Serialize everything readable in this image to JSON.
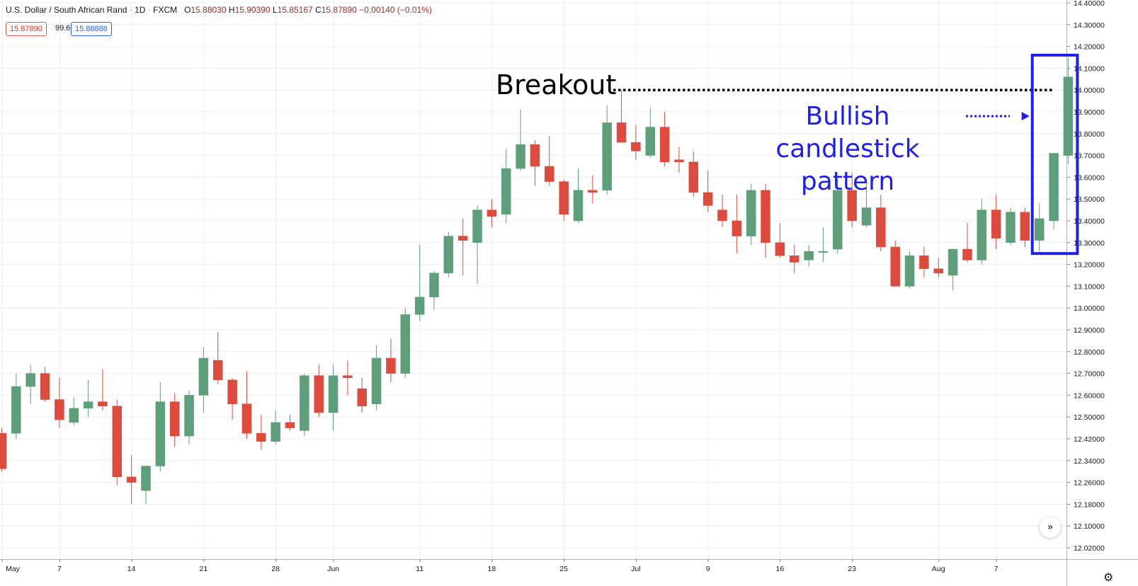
{
  "header": {
    "symbol": "U.S. Dollar / South African Rand",
    "interval": "1D",
    "source": "FXCM",
    "open_label": "O",
    "open": "15.88030",
    "high_label": "H",
    "high": "15.90390",
    "low_label": "L",
    "low": "15.85167",
    "close_label": "C",
    "close": "15.87890",
    "change": "−0.00140 (−0.01%)",
    "bid": "15.87890",
    "spread": "99.6",
    "ask": "15.88886"
  },
  "annotations": {
    "breakout": "Breakout",
    "bullish_line1": "Bullish candlestick",
    "bullish_line2": "pattern"
  },
  "controls": {
    "scroll_icon": "»",
    "settings_icon": "⚙"
  },
  "colors": {
    "up": "#5f9e7a",
    "down": "#db4c3f",
    "box": "#1f1fe6",
    "grid": "#eceef2"
  },
  "chart_data": {
    "type": "candlestick",
    "title": "U.S. Dollar / South African Rand · 1D · FXCM",
    "ylim": [
      12.02,
      14.4
    ],
    "y_ticks": [
      "14.40000",
      "14.30000",
      "14.20000",
      "14.10000",
      "14.00000",
      "13.90000",
      "13.80000",
      "13.70000",
      "13.60000",
      "13.50000",
      "13.40000",
      "13.30000",
      "13.20000",
      "13.10000",
      "13.00000",
      "12.90000",
      "12.80000",
      "12.70000",
      "12.60000",
      "12.50000",
      "12.42000",
      "12.34000",
      "12.26000",
      "12.18000",
      "12.10000",
      "12.02000"
    ],
    "x_ticks": [
      {
        "label": "May",
        "index": 0
      },
      {
        "label": "7",
        "index": 4
      },
      {
        "label": "14",
        "index": 9
      },
      {
        "label": "21",
        "index": 14
      },
      {
        "label": "28",
        "index": 19
      },
      {
        "label": "Jun",
        "index": 23
      },
      {
        "label": "11",
        "index": 29
      },
      {
        "label": "18",
        "index": 34
      },
      {
        "label": "25",
        "index": 39
      },
      {
        "label": "Jul",
        "index": 44
      },
      {
        "label": "9",
        "index": 49
      },
      {
        "label": "16",
        "index": 54
      },
      {
        "label": "23",
        "index": 59
      },
      {
        "label": "Aug",
        "index": 65
      },
      {
        "label": "7",
        "index": 69
      }
    ],
    "candles": [
      [
        12.44,
        12.46,
        12.3,
        12.31
      ],
      [
        12.44,
        12.7,
        12.42,
        12.64
      ],
      [
        12.64,
        12.74,
        12.56,
        12.7
      ],
      [
        12.7,
        12.73,
        12.57,
        12.58
      ],
      [
        12.58,
        12.68,
        12.46,
        12.49
      ],
      [
        12.48,
        12.59,
        12.47,
        12.54
      ],
      [
        12.54,
        12.67,
        12.5,
        12.57
      ],
      [
        12.57,
        12.72,
        12.53,
        12.55
      ],
      [
        12.55,
        12.58,
        12.25,
        12.28
      ],
      [
        12.28,
        12.36,
        12.18,
        12.26
      ],
      [
        12.23,
        12.32,
        12.18,
        12.32
      ],
      [
        12.32,
        12.66,
        12.3,
        12.57
      ],
      [
        12.57,
        12.61,
        12.39,
        12.43
      ],
      [
        12.43,
        12.62,
        12.4,
        12.6
      ],
      [
        12.6,
        12.82,
        12.52,
        12.77
      ],
      [
        12.76,
        12.89,
        12.65,
        12.67
      ],
      [
        12.67,
        12.68,
        12.49,
        12.56
      ],
      [
        12.56,
        12.71,
        12.42,
        12.44
      ],
      [
        12.44,
        12.51,
        12.38,
        12.41
      ],
      [
        12.41,
        12.53,
        12.4,
        12.48
      ],
      [
        12.48,
        12.51,
        12.45,
        12.46
      ],
      [
        12.45,
        12.7,
        12.43,
        12.69
      ],
      [
        12.69,
        12.74,
        12.5,
        12.52
      ],
      [
        12.52,
        12.74,
        12.45,
        12.69
      ],
      [
        12.69,
        12.76,
        12.6,
        12.68
      ],
      [
        12.63,
        12.68,
        12.52,
        12.55
      ],
      [
        12.56,
        12.83,
        12.53,
        12.77
      ],
      [
        12.77,
        12.86,
        12.66,
        12.7
      ],
      [
        12.7,
        13.0,
        12.68,
        12.97
      ],
      [
        12.97,
        13.29,
        12.94,
        13.05
      ],
      [
        13.05,
        13.17,
        12.99,
        13.16
      ],
      [
        13.16,
        13.35,
        13.14,
        13.33
      ],
      [
        13.33,
        13.41,
        13.15,
        13.31
      ],
      [
        13.3,
        13.47,
        13.11,
        13.45
      ],
      [
        13.45,
        13.5,
        13.37,
        13.42
      ],
      [
        13.43,
        13.73,
        13.39,
        13.64
      ],
      [
        13.64,
        13.91,
        13.63,
        13.75
      ],
      [
        13.75,
        13.77,
        13.56,
        13.65
      ],
      [
        13.65,
        13.79,
        13.56,
        13.58
      ],
      [
        13.58,
        13.59,
        13.4,
        13.43
      ],
      [
        13.4,
        13.64,
        13.39,
        13.54
      ],
      [
        13.54,
        13.61,
        13.48,
        13.53
      ],
      [
        13.54,
        13.93,
        13.52,
        13.85
      ],
      [
        13.85,
        14.0,
        13.76,
        13.76
      ],
      [
        13.76,
        13.84,
        13.68,
        13.72
      ],
      [
        13.7,
        13.92,
        13.69,
        13.83
      ],
      [
        13.83,
        13.9,
        13.65,
        13.67
      ],
      [
        13.68,
        13.74,
        13.62,
        13.67
      ],
      [
        13.67,
        13.72,
        13.51,
        13.53
      ],
      [
        13.53,
        13.63,
        13.44,
        13.47
      ],
      [
        13.45,
        13.52,
        13.37,
        13.4
      ],
      [
        13.4,
        13.52,
        13.25,
        13.33
      ],
      [
        13.33,
        13.57,
        13.29,
        13.54
      ],
      [
        13.54,
        13.57,
        13.23,
        13.3
      ],
      [
        13.3,
        13.39,
        13.23,
        13.24
      ],
      [
        13.24,
        13.29,
        13.16,
        13.21
      ],
      [
        13.22,
        13.29,
        13.19,
        13.26
      ],
      [
        13.26,
        13.37,
        13.21,
        13.26
      ],
      [
        13.27,
        13.6,
        13.25,
        13.54
      ],
      [
        13.54,
        13.62,
        13.37,
        13.4
      ],
      [
        13.38,
        13.57,
        13.37,
        13.46
      ],
      [
        13.46,
        13.52,
        13.26,
        13.28
      ],
      [
        13.28,
        13.31,
        13.1,
        13.1
      ],
      [
        13.1,
        13.26,
        13.09,
        13.24
      ],
      [
        13.24,
        13.28,
        13.14,
        13.18
      ],
      [
        13.18,
        13.23,
        13.14,
        13.16
      ],
      [
        13.15,
        13.27,
        13.08,
        13.27
      ],
      [
        13.27,
        13.39,
        13.21,
        13.22
      ],
      [
        13.22,
        13.5,
        13.2,
        13.45
      ],
      [
        13.45,
        13.52,
        13.27,
        13.32
      ],
      [
        13.3,
        13.46,
        13.29,
        13.44
      ],
      [
        13.44,
        13.46,
        13.28,
        13.31
      ],
      [
        13.31,
        13.48,
        13.26,
        13.41
      ],
      [
        13.4,
        13.71,
        13.36,
        13.71
      ],
      [
        13.7,
        14.15,
        13.66,
        14.06
      ]
    ],
    "breakout_level": 14.0,
    "highlight_range": [
      13.25,
      14.16
    ],
    "highlight_candles": [
      72,
      74
    ]
  }
}
